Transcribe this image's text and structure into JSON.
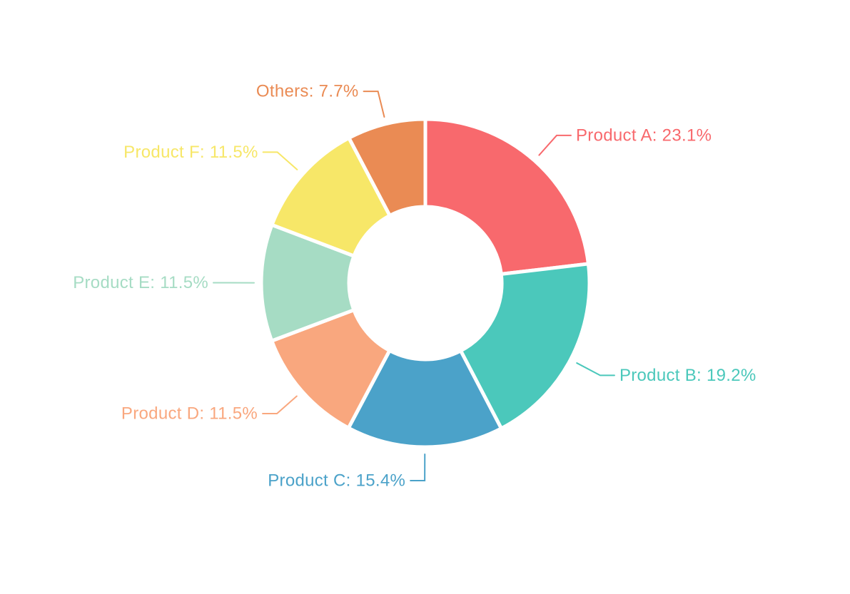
{
  "chart_data": {
    "type": "pie",
    "subtype": "donut",
    "labels": [
      "Product A",
      "Product B",
      "Product C",
      "Product D",
      "Product E",
      "Product F",
      "Others"
    ],
    "values": [
      23.1,
      19.2,
      15.4,
      11.5,
      11.5,
      11.5,
      7.7
    ],
    "unit": "%",
    "label_format": "{label}: {value}%",
    "slice_labels_rendered": [
      "Product A: 23.1%",
      "Product B: 19.2%",
      "Product C: 15.4%",
      "Product D: 11.5%",
      "Product E: 11.5%",
      "Product F: 11.5%",
      "Others: 7.7%"
    ],
    "colors": [
      "#F8696D",
      "#4BC8BB",
      "#4BA2C9",
      "#F9A77E",
      "#A6DCC4",
      "#F7E768",
      "#EA8B54"
    ],
    "start_angle_deg": 0,
    "direction": "clockwise",
    "donut_hole_ratio": 0.465,
    "slice_gap_color": "#FFFFFF",
    "legend": "none",
    "gridlines": false,
    "background_color": "#FFFFFF"
  }
}
